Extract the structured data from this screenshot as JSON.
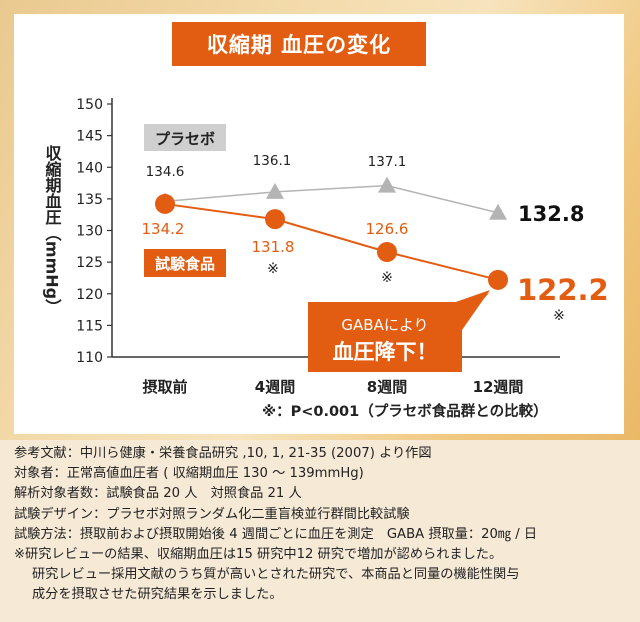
{
  "chart_data": {
    "type": "line",
    "title": "収縮期 血圧の変化",
    "ylabel": "収縮期血圧（mmHg）",
    "ylim": [
      110,
      150
    ],
    "yticks": [
      110,
      115,
      120,
      125,
      130,
      135,
      140,
      145,
      150
    ],
    "categories": [
      "摂取前",
      "4週間",
      "8週間",
      "12週間"
    ],
    "series": [
      {
        "name": "プラセボ",
        "values": [
          134.6,
          136.1,
          137.1,
          132.8
        ],
        "labels": [
          "134.6",
          "136.1",
          "137.1",
          "132.8"
        ],
        "color": "#b4b4b4",
        "marker": "triangle"
      },
      {
        "name": "試験食品",
        "values": [
          134.2,
          131.8,
          126.6,
          122.2
        ],
        "labels": [
          "134.2",
          "131.8",
          "126.6",
          "122.2"
        ],
        "color": "#e25d12",
        "marker": "circle",
        "significance_marks": [
          "",
          "※",
          "※",
          "※"
        ]
      }
    ],
    "callout": {
      "line1": "GABAにより",
      "line2": "血圧降下！"
    },
    "footnote": "※：P<0.001（プラセボ食品群との比較）",
    "grid": false,
    "legend": "inline labels"
  },
  "notes": [
    "参考文献：中川ら健康・栄養食品研究 ,10, 1, 21-35 (2007) より作図",
    "対象者：正常高値血圧者 ( 収縮期血圧 130 〜 139mmHg)",
    "解析対象者数：試験食品 20 人　対照食品 21 人",
    "試験デザイン：プラセボ対照ランダム化二重盲検並行群間比較試験",
    "試験方法：摂取前および摂取開始後 4 週間ごとに血圧を測定　GABA 摂取量：20㎎ / 日",
    "※研究レビューの結果、収縮期血圧は15 研究中12 研究で増加が認められました。",
    "研究レビュー採用文献のうち質が高いとされた研究で、本商品と同量の機能性関与",
    "成分を摂取させた研究結果を示しました。"
  ]
}
